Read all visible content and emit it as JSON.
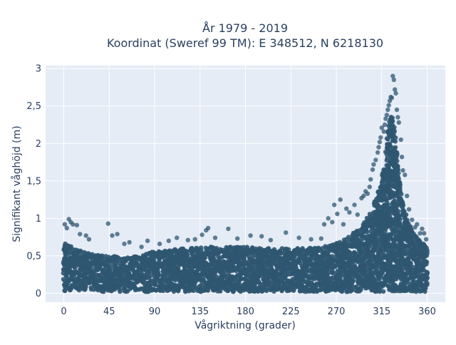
{
  "chart_data": {
    "type": "scatter",
    "title_line1": "År 1979 - 2019",
    "title_line2": "Koordinat (Sweref 99 TM): E 348512, N 6218130",
    "xlabel": "Vågriktning (grader)",
    "ylabel": "Signifikant våghöjd (m)",
    "xlim": [
      -18,
      378
    ],
    "ylim": [
      -0.12,
      3.04
    ],
    "x_ticks": [
      0,
      45,
      90,
      135,
      180,
      225,
      270,
      315,
      360
    ],
    "x_tick_labels": [
      "0",
      "45",
      "90",
      "135",
      "180",
      "225",
      "270",
      "315",
      "360"
    ],
    "y_ticks": [
      0,
      0.5,
      1,
      1.5,
      2,
      2.5,
      3
    ],
    "y_tick_labels": [
      "0",
      "0,5",
      "1",
      "1,5",
      "2",
      "2,5",
      "3"
    ],
    "grid": true,
    "legend": "none",
    "marker_color": "#2f5771",
    "envelope": {
      "direction": [
        0,
        10,
        20,
        30,
        45,
        60,
        75,
        90,
        105,
        120,
        135,
        150,
        165,
        180,
        195,
        210,
        225,
        240,
        255,
        265,
        275,
        285,
        295,
        300,
        305,
        310,
        315,
        318,
        320,
        322,
        325,
        328,
        330,
        332,
        335,
        338,
        340,
        345,
        350,
        355,
        360
      ],
      "upper_wave_height": [
        0.68,
        0.6,
        0.55,
        0.52,
        0.5,
        0.48,
        0.5,
        0.56,
        0.58,
        0.6,
        0.62,
        0.62,
        0.62,
        0.62,
        0.6,
        0.6,
        0.6,
        0.6,
        0.62,
        0.65,
        0.7,
        0.78,
        0.9,
        1.0,
        1.1,
        1.3,
        1.6,
        1.8,
        2.05,
        2.3,
        2.4,
        2.2,
        1.9,
        1.6,
        1.3,
        1.1,
        1.0,
        0.85,
        0.75,
        0.68,
        0.62
      ],
      "lower_wave_height": 0.02
    },
    "outliers": [
      [
        1,
        0.92
      ],
      [
        3,
        0.87
      ],
      [
        5,
        0.99
      ],
      [
        7,
        0.95
      ],
      [
        9,
        0.92
      ],
      [
        13,
        0.91
      ],
      [
        16,
        0.79
      ],
      [
        22,
        0.77
      ],
      [
        25,
        0.72
      ],
      [
        44,
        0.93
      ],
      [
        48,
        0.77
      ],
      [
        53,
        0.79
      ],
      [
        60,
        0.66
      ],
      [
        65,
        0.68
      ],
      [
        77,
        0.62
      ],
      [
        83,
        0.7
      ],
      [
        95,
        0.66
      ],
      [
        104,
        0.7
      ],
      [
        112,
        0.74
      ],
      [
        123,
        0.71
      ],
      [
        130,
        0.72
      ],
      [
        137,
        0.78
      ],
      [
        141,
        0.84
      ],
      [
        143,
        0.87
      ],
      [
        150,
        0.74
      ],
      [
        163,
        0.86
      ],
      [
        172,
        0.73
      ],
      [
        185,
        0.77
      ],
      [
        196,
        0.76
      ],
      [
        205,
        0.71
      ],
      [
        220,
        0.81
      ],
      [
        233,
        0.74
      ],
      [
        245,
        0.72
      ],
      [
        255,
        0.73
      ],
      [
        258,
        0.92
      ],
      [
        262,
        1.0
      ],
      [
        266,
        0.95
      ],
      [
        268,
        1.18
      ],
      [
        271,
        1.06
      ],
      [
        274,
        1.25
      ],
      [
        277,
        0.92
      ],
      [
        280,
        1.13
      ],
      [
        283,
        1.08
      ],
      [
        288,
        1.18
      ],
      [
        291,
        1.05
      ],
      [
        295,
        1.27
      ],
      [
        297,
        1.3
      ],
      [
        299,
        1.36
      ],
      [
        301,
        1.33
      ],
      [
        303,
        1.42
      ],
      [
        304,
        1.52
      ],
      [
        306,
        1.65
      ],
      [
        307,
        1.72
      ],
      [
        309,
        1.78
      ],
      [
        311,
        1.88
      ],
      [
        312,
        1.95
      ],
      [
        313,
        2.02
      ],
      [
        314,
        2.08
      ],
      [
        315,
        2.21
      ],
      [
        317,
        2.16
      ],
      [
        318,
        2.25
      ],
      [
        319,
        2.33
      ],
      [
        320,
        2.38
      ],
      [
        321,
        2.45
      ],
      [
        322,
        2.51
      ],
      [
        323,
        2.57
      ],
      [
        324,
        2.62
      ],
      [
        325,
        2.61
      ],
      [
        326,
        2.9
      ],
      [
        327,
        2.85
      ],
      [
        328,
        2.72
      ],
      [
        329,
        2.67
      ],
      [
        330,
        2.45
      ],
      [
        331,
        2.35
      ],
      [
        332,
        2.28
      ],
      [
        334,
        2.05
      ],
      [
        335,
        1.82
      ],
      [
        336,
        1.64
      ],
      [
        338,
        1.58
      ],
      [
        340,
        1.3
      ],
      [
        342,
        1.12
      ],
      [
        345,
        0.98
      ],
      [
        348,
        0.88
      ],
      [
        350,
        0.92
      ],
      [
        353,
        0.8
      ],
      [
        355,
        0.86
      ],
      [
        357,
        0.8
      ],
      [
        359,
        0.72
      ]
    ]
  }
}
